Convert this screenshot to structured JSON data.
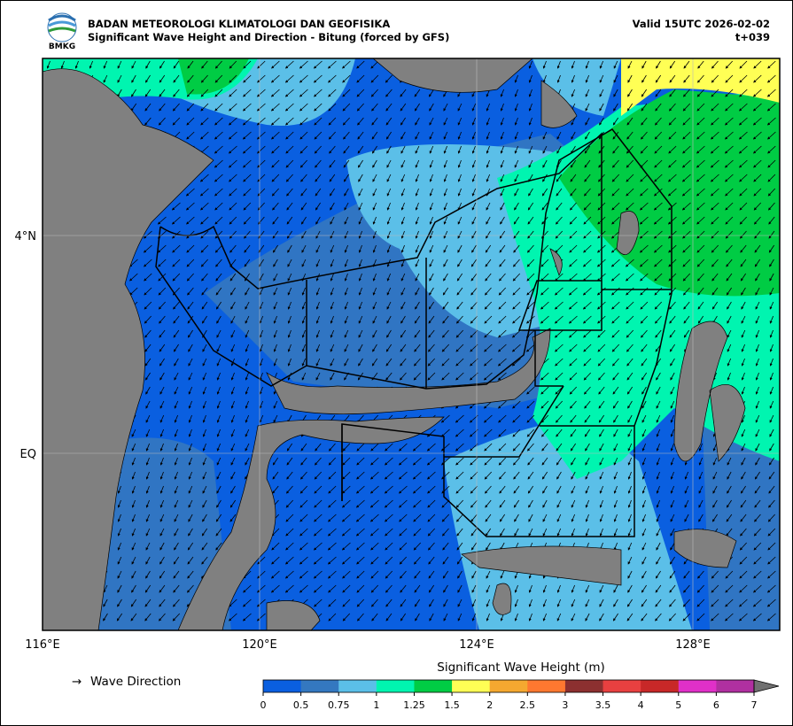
{
  "header": {
    "logo": "BMKG",
    "agency": "BADAN METEOROLOGI KLIMATOLOGI DAN GEOFISIKA",
    "title": "Significant Wave Height and Direction - Bitung (forced by GFS)",
    "valid": "Valid 15UTC 2026-02-02",
    "step": "t+039"
  },
  "map": {
    "lon_labels": [
      "116°E",
      "120°E",
      "124°E",
      "128°E"
    ],
    "lat_labels": [
      "4°N",
      "EQ"
    ]
  },
  "legend": {
    "arrow": "→",
    "label": "Wave Direction"
  },
  "colorbar": {
    "title": "Significant Wave Height (m)",
    "ticks": [
      0,
      0.5,
      0.75,
      1,
      1.25,
      1.5,
      2,
      2.5,
      3,
      3.5,
      4,
      5,
      6,
      7
    ],
    "colors": [
      "#0a5fe0",
      "#3478c0",
      "#5bbfe8",
      "#00f5b0",
      "#00cc44",
      "#ffff55",
      "#f5a830",
      "#ff7830",
      "#8c3030",
      "#e84040",
      "#c82828",
      "#e030c8",
      "#b030a0"
    ],
    "extend_color": "#707070"
  }
}
